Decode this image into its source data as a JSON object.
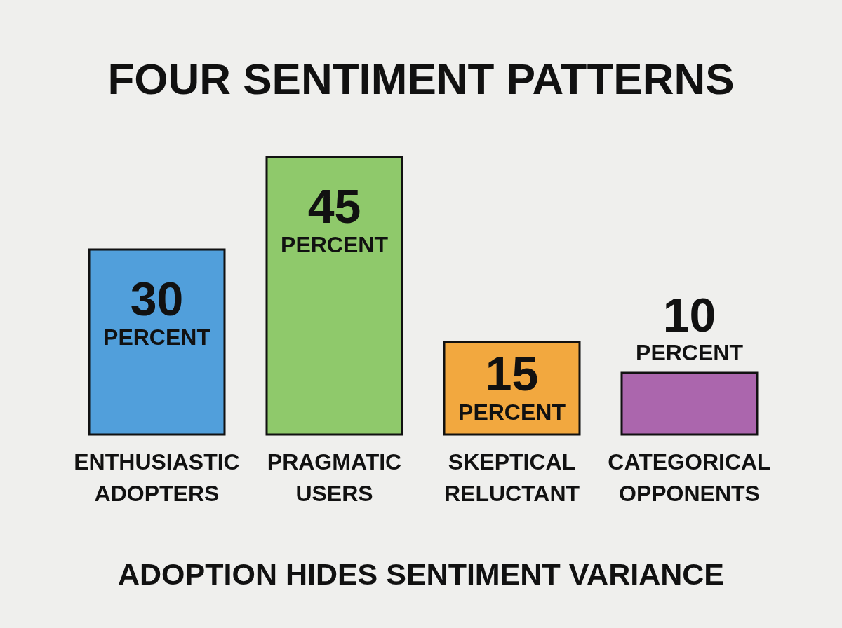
{
  "chart_data": {
    "type": "bar",
    "title": "FOUR SENTIMENT PATTERNS",
    "categories": [
      "ENTHUSIASTIC ADOPTERS",
      "PRAGMATIC USERS",
      "SKEPTICAL RELUCTANT",
      "CATEGORICAL OPPONENTS"
    ],
    "values": [
      30,
      45,
      15,
      10
    ],
    "colors": [
      "#519fdb",
      "#8fc96b",
      "#f2a83f",
      "#ab66ad"
    ],
    "value_labels": [
      "30 PERCENT",
      "45 PERCENT",
      "15 PERCENT",
      "10 PERCENT"
    ],
    "annotations": [
      "ADOPTION HIDES SENTIMENT VARIANCE"
    ],
    "tick_labels": "x"
  }
}
